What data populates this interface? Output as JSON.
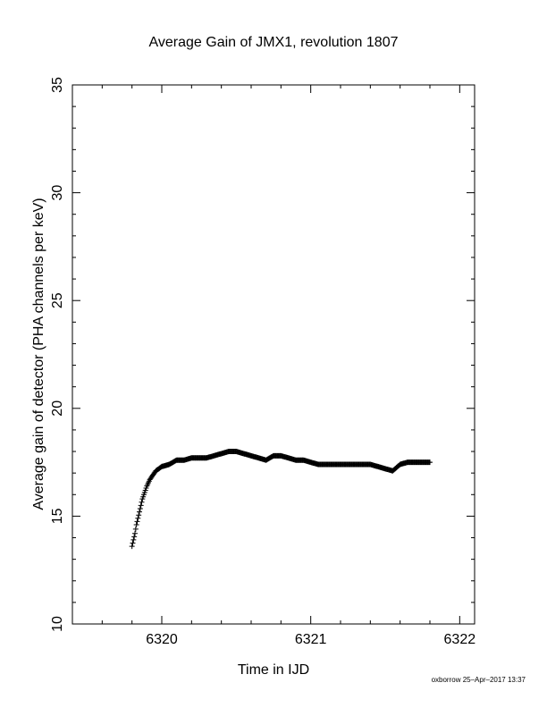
{
  "chart_data": {
    "type": "scatter",
    "title": "Average Gain of JMX1, revolution 1807",
    "xlabel": "Time in IJD",
    "ylabel": "Average gain of detector (PHA channels per keV)",
    "xlim": [
      6319.4,
      6322.1
    ],
    "ylim": [
      10,
      35
    ],
    "xticks": [
      6320,
      6321,
      6322
    ],
    "yticks": [
      10,
      15,
      20,
      25,
      30,
      35
    ],
    "xtick_labels": [
      "6320",
      "6321",
      "6322"
    ],
    "ytick_labels": [
      "10",
      "15",
      "20",
      "25",
      "30",
      "35"
    ],
    "grid": false,
    "marker": "plus",
    "color": "#000000",
    "series": [
      {
        "x": [
          6319.8,
          6319.81,
          6319.82,
          6319.83,
          6319.84,
          6319.85,
          6319.86,
          6319.87,
          6319.88,
          6319.89,
          6319.9,
          6319.92,
          6319.94,
          6319.96,
          6319.98,
          6320.0,
          6320.05,
          6320.1,
          6320.15,
          6320.2,
          6320.25,
          6320.3,
          6320.35,
          6320.4,
          6320.45,
          6320.5,
          6320.55,
          6320.6,
          6320.65,
          6320.7,
          6320.75,
          6320.8,
          6320.85,
          6320.9,
          6320.95,
          6321.0,
          6321.05,
          6321.1,
          6321.15,
          6321.2,
          6321.25,
          6321.3,
          6321.35,
          6321.4,
          6321.45,
          6321.5,
          6321.55,
          6321.6,
          6321.65,
          6321.7,
          6321.75,
          6321.8
        ],
        "y": [
          13.6,
          13.9,
          14.2,
          14.6,
          14.9,
          15.2,
          15.5,
          15.8,
          16.0,
          16.2,
          16.4,
          16.7,
          16.9,
          17.1,
          17.2,
          17.3,
          17.4,
          17.6,
          17.6,
          17.7,
          17.7,
          17.7,
          17.8,
          17.9,
          18.0,
          18.0,
          17.9,
          17.8,
          17.7,
          17.6,
          17.8,
          17.8,
          17.7,
          17.6,
          17.6,
          17.5,
          17.4,
          17.4,
          17.4,
          17.4,
          17.4,
          17.4,
          17.4,
          17.4,
          17.3,
          17.2,
          17.1,
          17.4,
          17.5,
          17.5,
          17.5,
          17.5
        ]
      }
    ]
  },
  "credit": "oxborrow 25–Apr–2017 13:37"
}
